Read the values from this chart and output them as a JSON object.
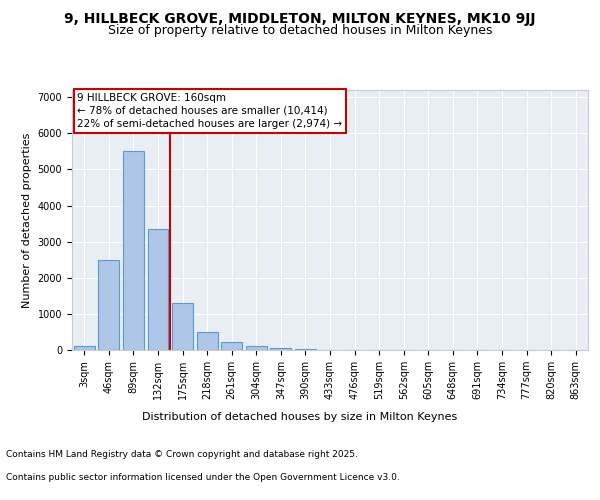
{
  "title1": "9, HILLBECK GROVE, MIDDLETON, MILTON KEYNES, MK10 9JJ",
  "title2": "Size of property relative to detached houses in Milton Keynes",
  "xlabel": "Distribution of detached houses by size in Milton Keynes",
  "ylabel": "Number of detached properties",
  "categories": [
    "3sqm",
    "46sqm",
    "89sqm",
    "132sqm",
    "175sqm",
    "218sqm",
    "261sqm",
    "304sqm",
    "347sqm",
    "390sqm",
    "433sqm",
    "476sqm",
    "519sqm",
    "562sqm",
    "605sqm",
    "648sqm",
    "691sqm",
    "734sqm",
    "777sqm",
    "820sqm",
    "863sqm"
  ],
  "values": [
    100,
    2500,
    5500,
    3350,
    1300,
    500,
    220,
    100,
    50,
    20,
    5,
    2,
    1,
    0,
    0,
    0,
    0,
    0,
    0,
    0,
    0
  ],
  "bar_color": "#aec6e8",
  "bar_edge_color": "#5b9bd5",
  "vline_x_index": 3,
  "vline_color": "#cc0000",
  "annotation_text": "9 HILLBECK GROVE: 160sqm\n← 78% of detached houses are smaller (10,414)\n22% of semi-detached houses are larger (2,974) →",
  "annotation_box_color": "#cc0000",
  "ylim": [
    0,
    7200
  ],
  "yticks": [
    0,
    1000,
    2000,
    3000,
    4000,
    5000,
    6000,
    7000
  ],
  "plot_bg_color": "#e8eef4",
  "footer1": "Contains HM Land Registry data © Crown copyright and database right 2025.",
  "footer2": "Contains public sector information licensed under the Open Government Licence v3.0.",
  "title_fontsize": 10,
  "subtitle_fontsize": 9,
  "annotation_fontsize": 7.5,
  "axis_label_fontsize": 8,
  "tick_fontsize": 7,
  "footer_fontsize": 6.5
}
